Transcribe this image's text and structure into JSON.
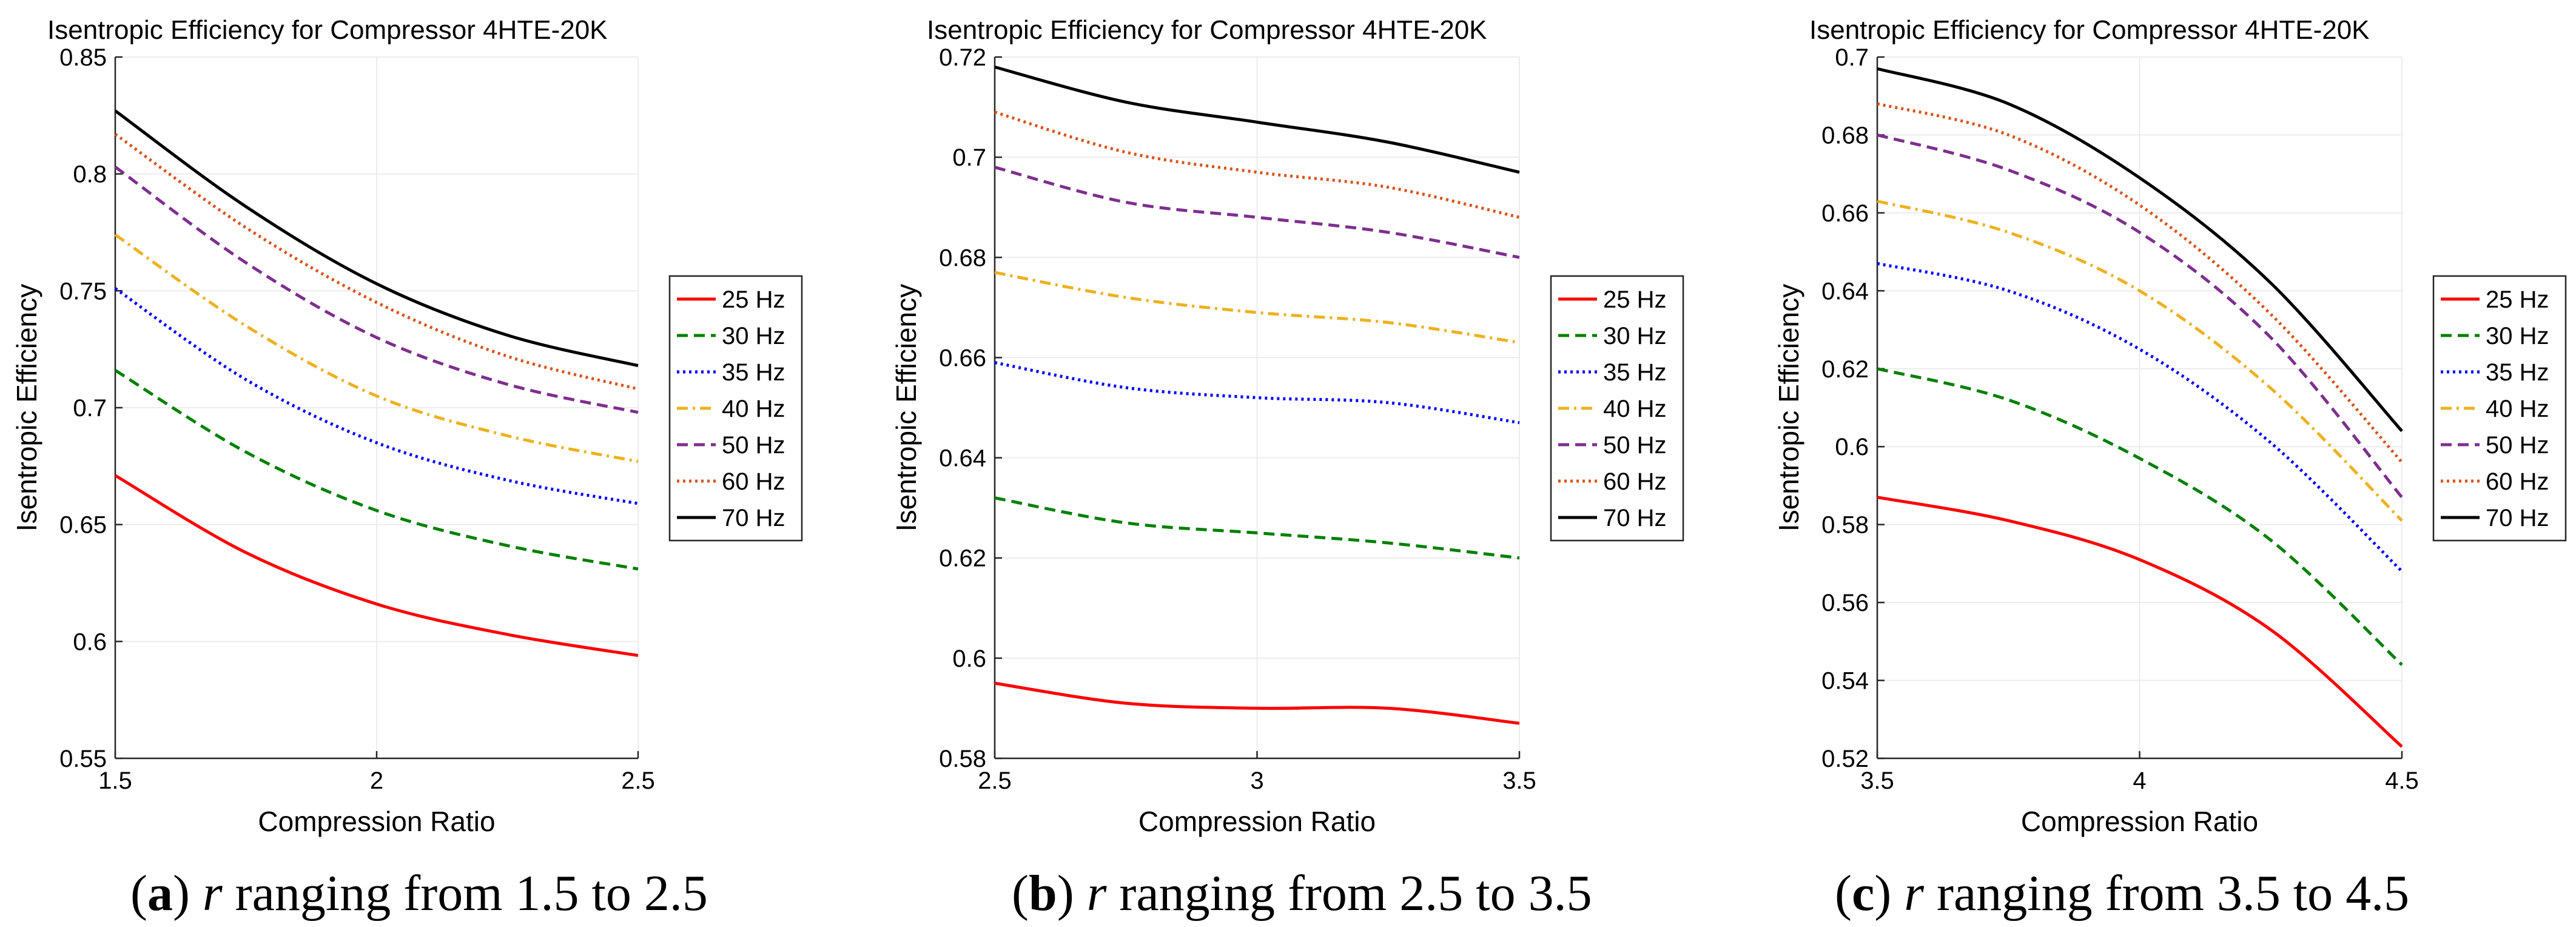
{
  "chart_data": [
    {
      "type": "line",
      "title": "Isentropic Efficiency for Compressor 4HTE-20K",
      "xlabel": "Compression Ratio",
      "ylabel": "Isentropic Efficiency",
      "xlim": [
        1.5,
        2.5
      ],
      "ylim": [
        0.55,
        0.85
      ],
      "xticks": [
        1.5,
        2,
        2.5
      ],
      "xtick_labels": [
        "1.5",
        "2",
        "2.5"
      ],
      "yticks": [
        0.55,
        0.6,
        0.65,
        0.7,
        0.75,
        0.8,
        0.85
      ],
      "ytick_labels": [
        "0.55",
        "0.6",
        "0.65",
        "0.7",
        "0.75",
        "0.8",
        "0.85"
      ],
      "grid": true,
      "legend_position": "right",
      "x": [
        1.5,
        1.75,
        2.0,
        2.25,
        2.5
      ],
      "series": [
        {
          "name": "25 Hz",
          "values": [
            0.671,
            0.638,
            0.616,
            0.603,
            0.594
          ]
        },
        {
          "name": "30 Hz",
          "values": [
            0.716,
            0.681,
            0.656,
            0.641,
            0.631
          ]
        },
        {
          "name": "35 Hz",
          "values": [
            0.751,
            0.712,
            0.685,
            0.669,
            0.659
          ]
        },
        {
          "name": "40 Hz",
          "values": [
            0.774,
            0.735,
            0.705,
            0.688,
            0.677
          ]
        },
        {
          "name": "50 Hz",
          "values": [
            0.803,
            0.762,
            0.73,
            0.71,
            0.698
          ]
        },
        {
          "name": "60 Hz",
          "values": [
            0.817,
            0.777,
            0.745,
            0.722,
            0.708
          ]
        },
        {
          "name": "70 Hz",
          "values": [
            0.827,
            0.786,
            0.753,
            0.731,
            0.718
          ]
        }
      ],
      "caption": {
        "letter": "a",
        "variable": "r",
        "text": " ranging from 1.5 to 2.5"
      }
    },
    {
      "type": "line",
      "title": "Isentropic Efficiency for Compressor 4HTE-20K",
      "xlabel": "Compression Ratio",
      "ylabel": "Isentropic Efficiency",
      "xlim": [
        2.5,
        3.5
      ],
      "ylim": [
        0.58,
        0.72
      ],
      "xticks": [
        2.5,
        3,
        3.5
      ],
      "xtick_labels": [
        "2.5",
        "3",
        "3.5"
      ],
      "yticks": [
        0.58,
        0.6,
        0.62,
        0.64,
        0.66,
        0.68,
        0.7,
        0.72
      ],
      "ytick_labels": [
        "0.58",
        "0.6",
        "0.62",
        "0.64",
        "0.66",
        "0.68",
        "0.7",
        "0.72"
      ],
      "grid": true,
      "legend_position": "right",
      "x": [
        2.5,
        2.75,
        3.0,
        3.25,
        3.5
      ],
      "series": [
        {
          "name": "25 Hz",
          "values": [
            0.595,
            0.591,
            0.59,
            0.59,
            0.587
          ]
        },
        {
          "name": "30 Hz",
          "values": [
            0.632,
            0.627,
            0.625,
            0.623,
            0.62
          ]
        },
        {
          "name": "35 Hz",
          "values": [
            0.659,
            0.654,
            0.652,
            0.651,
            0.647
          ]
        },
        {
          "name": "40 Hz",
          "values": [
            0.677,
            0.672,
            0.669,
            0.667,
            0.663
          ]
        },
        {
          "name": "50 Hz",
          "values": [
            0.698,
            0.691,
            0.688,
            0.685,
            0.68
          ]
        },
        {
          "name": "60 Hz",
          "values": [
            0.709,
            0.701,
            0.697,
            0.694,
            0.688
          ]
        },
        {
          "name": "70 Hz",
          "values": [
            0.718,
            0.711,
            0.707,
            0.703,
            0.697
          ]
        }
      ],
      "caption": {
        "letter": "b",
        "variable": "r",
        "text": " ranging from 2.5 to 3.5"
      }
    },
    {
      "type": "line",
      "title": "Isentropic Efficiency for Compressor 4HTE-20K",
      "xlabel": "Compression Ratio",
      "ylabel": "Isentropic Efficiency",
      "xlim": [
        3.5,
        4.5
      ],
      "ylim": [
        0.52,
        0.7
      ],
      "xticks": [
        3.5,
        4,
        4.5
      ],
      "xtick_labels": [
        "3.5",
        "4",
        "4.5"
      ],
      "yticks": [
        0.52,
        0.54,
        0.56,
        0.58,
        0.6,
        0.62,
        0.64,
        0.66,
        0.68,
        0.7
      ],
      "ytick_labels": [
        "0.52",
        "0.54",
        "0.56",
        "0.58",
        "0.6",
        "0.62",
        "0.64",
        "0.66",
        "0.68",
        "0.7"
      ],
      "grid": true,
      "legend_position": "right",
      "x": [
        3.5,
        3.75,
        4.0,
        4.25,
        4.5
      ],
      "series": [
        {
          "name": "25 Hz",
          "values": [
            0.587,
            0.581,
            0.571,
            0.553,
            0.523
          ]
        },
        {
          "name": "30 Hz",
          "values": [
            0.62,
            0.612,
            0.597,
            0.576,
            0.544
          ]
        },
        {
          "name": "35 Hz",
          "values": [
            0.647,
            0.64,
            0.625,
            0.601,
            0.568
          ]
        },
        {
          "name": "40 Hz",
          "values": [
            0.663,
            0.655,
            0.64,
            0.615,
            0.581
          ]
        },
        {
          "name": "50 Hz",
          "values": [
            0.68,
            0.671,
            0.655,
            0.628,
            0.587
          ]
        },
        {
          "name": "60 Hz",
          "values": [
            0.688,
            0.68,
            0.662,
            0.634,
            0.596
          ]
        },
        {
          "name": "70 Hz",
          "values": [
            0.697,
            0.688,
            0.669,
            0.642,
            0.604
          ]
        }
      ],
      "caption": {
        "letter": "c",
        "variable": "r",
        "text": " ranging from 3.5 to 4.5"
      }
    }
  ],
  "series_styles": [
    {
      "color": "#ff0000",
      "dash": "solid"
    },
    {
      "color": "#008000",
      "dash": "dashed"
    },
    {
      "color": "#0000ff",
      "dash": "dotted"
    },
    {
      "color": "#edb120",
      "dash": "dashdot"
    },
    {
      "color": "#7e2f8e",
      "dash": "dashed"
    },
    {
      "color": "#d95319",
      "dash": "dotted"
    },
    {
      "color": "#000000",
      "dash": "solid"
    }
  ]
}
